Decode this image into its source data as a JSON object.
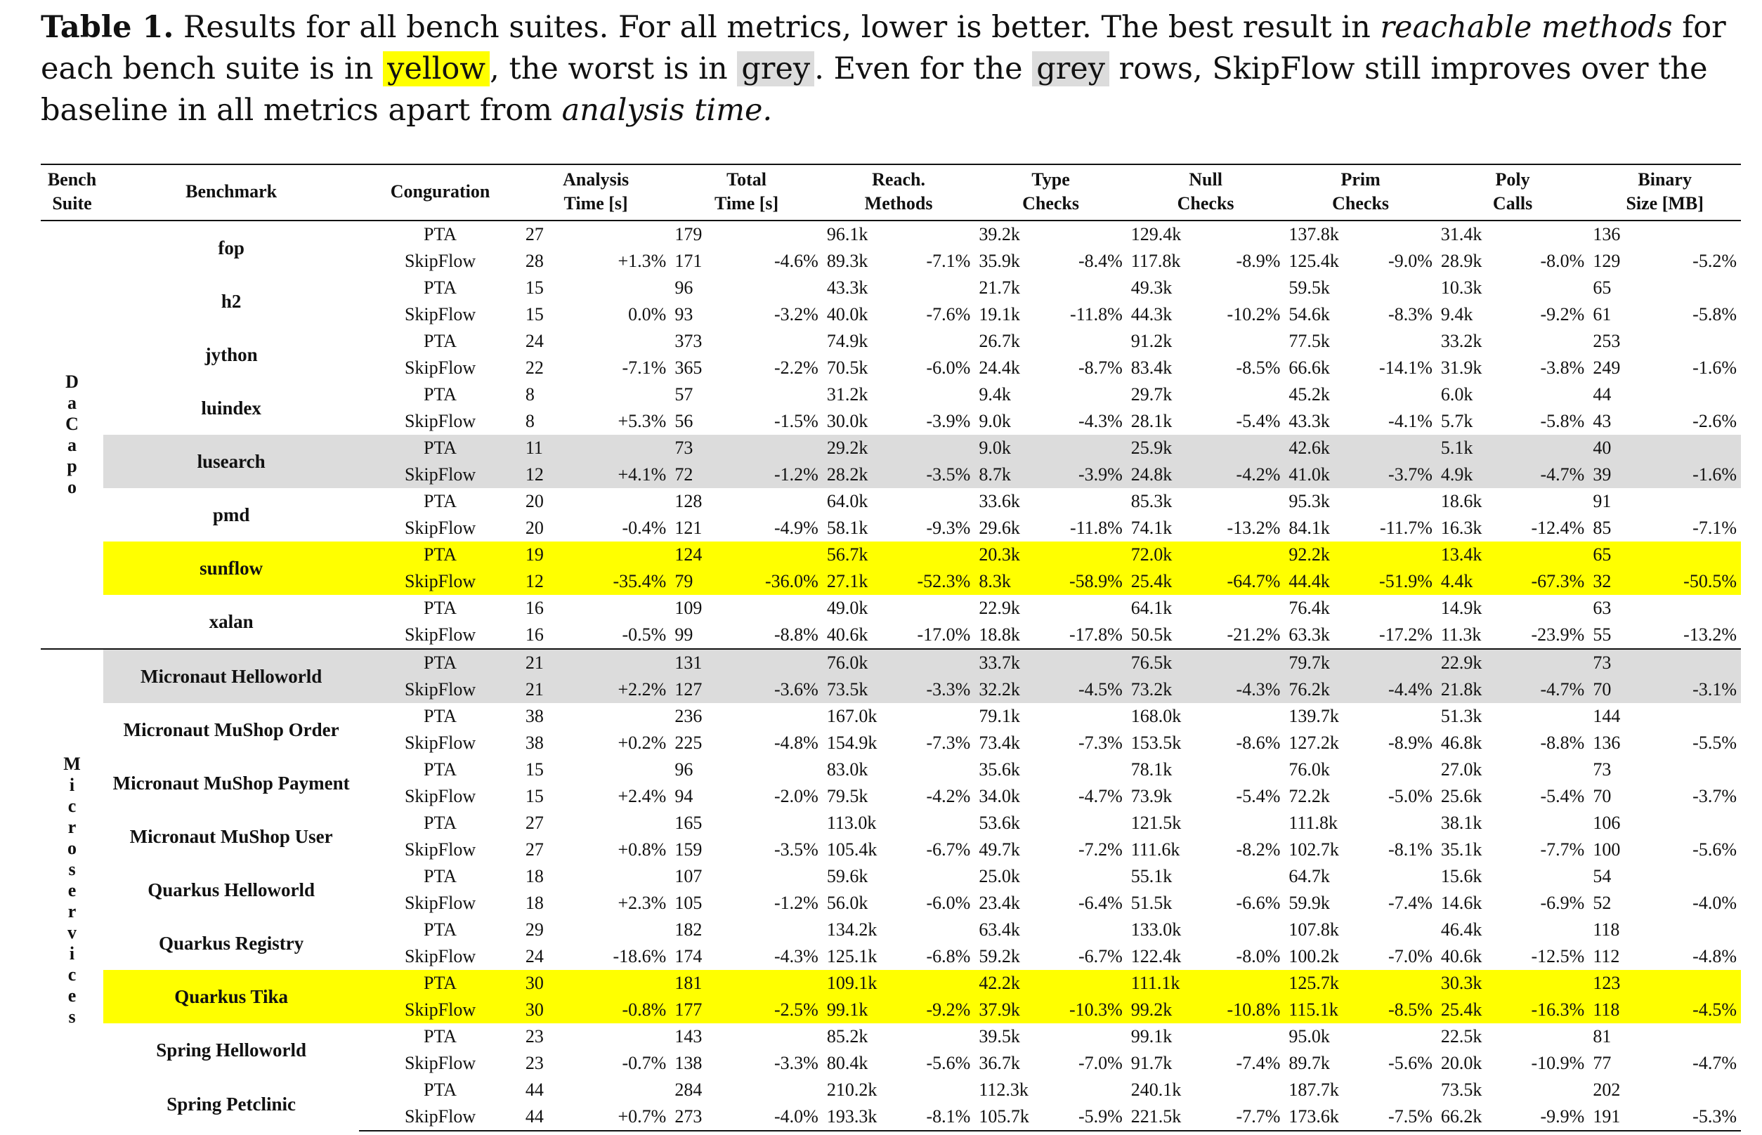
{
  "caption": {
    "label": "Table 1.",
    "part1": " Results for all bench suites. For all metrics, lower is better. The best result in ",
    "italic1": "reachable methods",
    "part2": " for each bench suite is in ",
    "yellow_word": "yellow",
    "part3": ", the worst is in ",
    "grey_word1": "grey",
    "part4": ". Even for the ",
    "grey_word2": "grey",
    "part5": " rows, SkipFlow still improves over the baseline in all metrics apart from ",
    "italic2": "analysis time."
  },
  "headers": {
    "suite": [
      "Bench",
      "Suite"
    ],
    "benchmark": "Benchmark",
    "configuration": "Conguration",
    "analysis_time": [
      "Analysis",
      "Time [s]"
    ],
    "total_time": [
      "Total",
      "Time [s]"
    ],
    "reach_methods": [
      "Reach.",
      "Methods"
    ],
    "type_checks": [
      "Type",
      "Checks"
    ],
    "null_checks": [
      "Null",
      "Checks"
    ],
    "prim_checks": [
      "Prim",
      "Checks"
    ],
    "poly_calls": [
      "Poly",
      "Calls"
    ],
    "binary_size": [
      "Binary",
      "Size [MB]"
    ]
  },
  "colors": {
    "best": "#ffff00",
    "worst": "#dcdcdc"
  },
  "suites": [
    {
      "name": "DaCapo",
      "letters": [
        "D",
        "a",
        "C",
        "a",
        "p",
        "o"
      ],
      "benchmarks": [
        {
          "name": "fop",
          "highlight": "none",
          "pta": [
            "27",
            "179",
            "96.1k",
            "39.2k",
            "129.4k",
            "137.8k",
            "31.4k",
            "136"
          ],
          "skip": [
            "28",
            "+1.3%",
            "171",
            "-4.6%",
            "89.3k",
            "-7.1%",
            "35.9k",
            "-8.4%",
            "117.8k",
            "-8.9%",
            "125.4k",
            "-9.0%",
            "28.9k",
            "-8.0%",
            "129",
            "-5.2%"
          ]
        },
        {
          "name": "h2",
          "highlight": "none",
          "pta": [
            "15",
            "96",
            "43.3k",
            "21.7k",
            "49.3k",
            "59.5k",
            "10.3k",
            "65"
          ],
          "skip": [
            "15",
            "0.0%",
            "93",
            "-3.2%",
            "40.0k",
            "-7.6%",
            "19.1k",
            "-11.8%",
            "44.3k",
            "-10.2%",
            "54.6k",
            "-8.3%",
            "9.4k",
            "-9.2%",
            "61",
            "-5.8%"
          ]
        },
        {
          "name": "jython",
          "highlight": "none",
          "pta": [
            "24",
            "373",
            "74.9k",
            "26.7k",
            "91.2k",
            "77.5k",
            "33.2k",
            "253"
          ],
          "skip": [
            "22",
            "-7.1%",
            "365",
            "-2.2%",
            "70.5k",
            "-6.0%",
            "24.4k",
            "-8.7%",
            "83.4k",
            "-8.5%",
            "66.6k",
            "-14.1%",
            "31.9k",
            "-3.8%",
            "249",
            "-1.6%"
          ]
        },
        {
          "name": "luindex",
          "highlight": "none",
          "pta": [
            "8",
            "57",
            "31.2k",
            "9.4k",
            "29.7k",
            "45.2k",
            "6.0k",
            "44"
          ],
          "skip": [
            "8",
            "+5.3%",
            "56",
            "-1.5%",
            "30.0k",
            "-3.9%",
            "9.0k",
            "-4.3%",
            "28.1k",
            "-5.4%",
            "43.3k",
            "-4.1%",
            "5.7k",
            "-5.8%",
            "43",
            "-2.6%"
          ]
        },
        {
          "name": "lusearch",
          "highlight": "grey",
          "pta": [
            "11",
            "73",
            "29.2k",
            "9.0k",
            "25.9k",
            "42.6k",
            "5.1k",
            "40"
          ],
          "skip": [
            "12",
            "+4.1%",
            "72",
            "-1.2%",
            "28.2k",
            "-3.5%",
            "8.7k",
            "-3.9%",
            "24.8k",
            "-4.2%",
            "41.0k",
            "-3.7%",
            "4.9k",
            "-4.7%",
            "39",
            "-1.6%"
          ]
        },
        {
          "name": "pmd",
          "highlight": "none",
          "pta": [
            "20",
            "128",
            "64.0k",
            "33.6k",
            "85.3k",
            "95.3k",
            "18.6k",
            "91"
          ],
          "skip": [
            "20",
            "-0.4%",
            "121",
            "-4.9%",
            "58.1k",
            "-9.3%",
            "29.6k",
            "-11.8%",
            "74.1k",
            "-13.2%",
            "84.1k",
            "-11.7%",
            "16.3k",
            "-12.4%",
            "85",
            "-7.1%"
          ]
        },
        {
          "name": "sunflow",
          "highlight": "yellow",
          "pta": [
            "19",
            "124",
            "56.7k",
            "20.3k",
            "72.0k",
            "92.2k",
            "13.4k",
            "65"
          ],
          "skip": [
            "12",
            "-35.4%",
            "79",
            "-36.0%",
            "27.1k",
            "-52.3%",
            "8.3k",
            "-58.9%",
            "25.4k",
            "-64.7%",
            "44.4k",
            "-51.9%",
            "4.4k",
            "-67.3%",
            "32",
            "-50.5%"
          ]
        },
        {
          "name": "xalan",
          "highlight": "none",
          "pta": [
            "16",
            "109",
            "49.0k",
            "22.9k",
            "64.1k",
            "76.4k",
            "14.9k",
            "63"
          ],
          "skip": [
            "16",
            "-0.5%",
            "99",
            "-8.8%",
            "40.6k",
            "-17.0%",
            "18.8k",
            "-17.8%",
            "50.5k",
            "-21.2%",
            "63.3k",
            "-17.2%",
            "11.3k",
            "-23.9%",
            "55",
            "-13.2%"
          ]
        }
      ]
    },
    {
      "name": "Microservices",
      "letters": [
        "M",
        "i",
        "c",
        "r",
        "o",
        "s",
        "e",
        "r",
        "v",
        "i",
        "c",
        "e",
        "s"
      ],
      "benchmarks": [
        {
          "name": "Micronaut Helloworld",
          "highlight": "grey",
          "pta": [
            "21",
            "131",
            "76.0k",
            "33.7k",
            "76.5k",
            "79.7k",
            "22.9k",
            "73"
          ],
          "skip": [
            "21",
            "+2.2%",
            "127",
            "-3.6%",
            "73.5k",
            "-3.3%",
            "32.2k",
            "-4.5%",
            "73.2k",
            "-4.3%",
            "76.2k",
            "-4.4%",
            "21.8k",
            "-4.7%",
            "70",
            "-3.1%"
          ]
        },
        {
          "name": "Micronaut MuShop Order",
          "highlight": "none",
          "pta": [
            "38",
            "236",
            "167.0k",
            "79.1k",
            "168.0k",
            "139.7k",
            "51.3k",
            "144"
          ],
          "skip": [
            "38",
            "+0.2%",
            "225",
            "-4.8%",
            "154.9k",
            "-7.3%",
            "73.4k",
            "-7.3%",
            "153.5k",
            "-8.6%",
            "127.2k",
            "-8.9%",
            "46.8k",
            "-8.8%",
            "136",
            "-5.5%"
          ]
        },
        {
          "name": "Micronaut MuShop Payment",
          "highlight": "none",
          "pta": [
            "15",
            "96",
            "83.0k",
            "35.6k",
            "78.1k",
            "76.0k",
            "27.0k",
            "73"
          ],
          "skip": [
            "15",
            "+2.4%",
            "94",
            "-2.0%",
            "79.5k",
            "-4.2%",
            "34.0k",
            "-4.7%",
            "73.9k",
            "-5.4%",
            "72.2k",
            "-5.0%",
            "25.6k",
            "-5.4%",
            "70",
            "-3.7%"
          ]
        },
        {
          "name": "Micronaut MuShop User",
          "highlight": "none",
          "pta": [
            "27",
            "165",
            "113.0k",
            "53.6k",
            "121.5k",
            "111.8k",
            "38.1k",
            "106"
          ],
          "skip": [
            "27",
            "+0.8%",
            "159",
            "-3.5%",
            "105.4k",
            "-6.7%",
            "49.7k",
            "-7.2%",
            "111.6k",
            "-8.2%",
            "102.7k",
            "-8.1%",
            "35.1k",
            "-7.7%",
            "100",
            "-5.6%"
          ]
        },
        {
          "name": "Quarkus Helloworld",
          "highlight": "none",
          "pta": [
            "18",
            "107",
            "59.6k",
            "25.0k",
            "55.1k",
            "64.7k",
            "15.6k",
            "54"
          ],
          "skip": [
            "18",
            "+2.3%",
            "105",
            "-1.2%",
            "56.0k",
            "-6.0%",
            "23.4k",
            "-6.4%",
            "51.5k",
            "-6.6%",
            "59.9k",
            "-7.4%",
            "14.6k",
            "-6.9%",
            "52",
            "-4.0%"
          ]
        },
        {
          "name": "Quarkus Registry",
          "highlight": "none",
          "pta": [
            "29",
            "182",
            "134.2k",
            "63.4k",
            "133.0k",
            "107.8k",
            "46.4k",
            "118"
          ],
          "skip": [
            "24",
            "-18.6%",
            "174",
            "-4.3%",
            "125.1k",
            "-6.8%",
            "59.2k",
            "-6.7%",
            "122.4k",
            "-8.0%",
            "100.2k",
            "-7.0%",
            "40.6k",
            "-12.5%",
            "112",
            "-4.8%"
          ]
        },
        {
          "name": "Quarkus Tika",
          "highlight": "yellow",
          "pta": [
            "30",
            "181",
            "109.1k",
            "42.2k",
            "111.1k",
            "125.7k",
            "30.3k",
            "123"
          ],
          "skip": [
            "30",
            "-0.8%",
            "177",
            "-2.5%",
            "99.1k",
            "-9.2%",
            "37.9k",
            "-10.3%",
            "99.2k",
            "-10.8%",
            "115.1k",
            "-8.5%",
            "25.4k",
            "-16.3%",
            "118",
            "-4.5%"
          ]
        },
        {
          "name": "Spring Helloworld",
          "highlight": "none",
          "pta": [
            "23",
            "143",
            "85.2k",
            "39.5k",
            "99.1k",
            "95.0k",
            "22.5k",
            "81"
          ],
          "skip": [
            "23",
            "-0.7%",
            "138",
            "-3.3%",
            "80.4k",
            "-5.6%",
            "36.7k",
            "-7.0%",
            "91.7k",
            "-7.4%",
            "89.7k",
            "-5.6%",
            "20.0k",
            "-10.9%",
            "77",
            "-4.7%"
          ]
        },
        {
          "name": "Spring Petclinic",
          "highlight": "none",
          "pta": [
            "44",
            "284",
            "210.2k",
            "112.3k",
            "240.1k",
            "187.7k",
            "73.5k",
            "202"
          ],
          "skip": [
            "44",
            "+0.7%",
            "273",
            "-4.0%",
            "193.3k",
            "-8.1%",
            "105.7k",
            "-5.9%",
            "221.5k",
            "-7.7%",
            "173.6k",
            "-7.5%",
            "66.2k",
            "-9.9%",
            "191",
            "-5.3%"
          ]
        }
      ]
    }
  ],
  "config_labels": {
    "pta": "PTA",
    "skip": "SkipFlow"
  }
}
